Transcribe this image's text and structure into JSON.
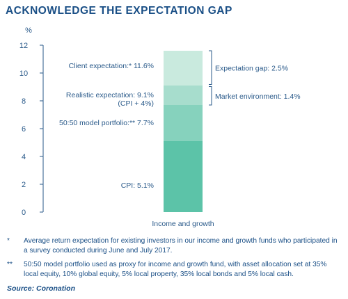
{
  "title": "ACKNOWLEDGE THE EXPECTATION GAP",
  "chart_data": {
    "type": "bar",
    "title": "",
    "ylabel": "%",
    "ylim": [
      0,
      12
    ],
    "yticks": [
      0,
      2,
      4,
      6,
      8,
      10,
      12
    ],
    "categories": [
      "Income and growth"
    ],
    "stacked_layers": [
      {
        "label": "CPI: 5.1%",
        "bottom": 0,
        "top": 5.1,
        "color": "#5cc3a8"
      },
      {
        "label": "50:50 model portfolio:** 7.7%",
        "bottom": 5.1,
        "top": 7.7,
        "color": "#86d2bd"
      },
      {
        "label": "Realistic expectation: 9.1%",
        "sublabel": "(CPI + 4%)",
        "bottom": 7.7,
        "top": 9.1,
        "color": "#a7ddcd"
      },
      {
        "label": "Client expectation:* 11.6%",
        "bottom": 9.1,
        "top": 11.6,
        "color": "#c9eade"
      }
    ],
    "brackets": [
      {
        "label": "Expectation gap: 2.5%",
        "from": 9.1,
        "to": 11.6
      },
      {
        "label": "Market environment: 1.4%",
        "from": 7.7,
        "to": 9.1
      }
    ],
    "grid": false,
    "axis_color": "#2a5a8a"
  },
  "footnotes": [
    {
      "mark": "*",
      "text": "Average return expectation for existing investors in our income and growth funds who participated in a survey conducted during June and July 2017."
    },
    {
      "mark": "**",
      "text": "50:50 model portfolio used as proxy for income and growth fund, with asset allocation set at 35% local equity, 10% global equity, 5% local property, 35% local bonds and 5% local cash."
    }
  ],
  "source": "Source: Coronation"
}
